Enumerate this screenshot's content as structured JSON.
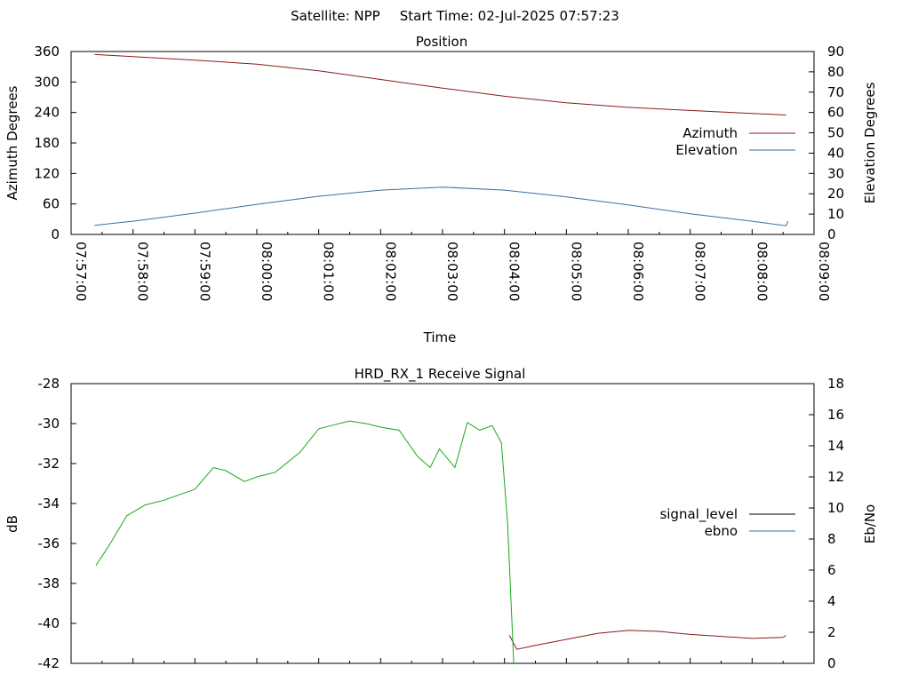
{
  "header": {
    "satellite": "Satellite: NPP",
    "start_time": "Start Time: 02-Jul-2025 07:57:23"
  },
  "colors": {
    "azimuth": "#8b1a1a",
    "elevation": "#3a6ea5",
    "signal_level_key": "#000000",
    "signal_level_trace": "#8b1a1a",
    "ebno_key": "#3a6ea5",
    "ebno_trace": "#1aa81a"
  },
  "chart_data": [
    {
      "type": "line",
      "title": "Position",
      "xlabel": "Time",
      "ylabel": "Azimuth Degrees",
      "y2label": "Elevation Degrees",
      "x_tick_labels": [
        "07:57:00",
        "07:58:00",
        "07:59:00",
        "08:00:00",
        "08:01:00",
        "08:02:00",
        "08:03:00",
        "08:04:00",
        "08:05:00",
        "08:06:00",
        "08:07:00",
        "08:08:00",
        "08:09:00"
      ],
      "y_ticks": [
        0,
        60,
        120,
        180,
        240,
        300,
        360
      ],
      "y2_ticks": [
        0,
        10,
        20,
        30,
        40,
        50,
        60,
        70,
        80,
        90
      ],
      "xlim_minutes": [
        0,
        12
      ],
      "ylim": [
        0,
        360
      ],
      "y2lim": [
        0,
        90
      ],
      "legend_position": "right",
      "series": [
        {
          "name": "Azimuth",
          "axis": "y",
          "x_minutes": [
            0.38,
            1,
            2,
            3,
            4,
            5,
            6,
            7,
            8,
            9,
            10,
            11,
            11.55
          ],
          "values": [
            354,
            350,
            343,
            335,
            322,
            305,
            288,
            272,
            259,
            250,
            244,
            238,
            235
          ]
        },
        {
          "name": "Elevation",
          "axis": "y2",
          "x_minutes": [
            0.38,
            1,
            2,
            3,
            4,
            5,
            6,
            7,
            8,
            9,
            10,
            11,
            11.55,
            11.58
          ],
          "values": [
            4.5,
            6.5,
            10.5,
            14.8,
            18.8,
            21.8,
            23.3,
            21.8,
            18.5,
            14.5,
            10.2,
            6.5,
            4.3,
            6.5
          ]
        }
      ]
    },
    {
      "type": "line",
      "title": "HRD_RX_1 Receive Signal",
      "xlabel": "",
      "ylabel": "dB",
      "y2label": "Eb/No",
      "y_ticks": [
        -42,
        -40,
        -38,
        -36,
        -34,
        -32,
        -30,
        -28
      ],
      "y2_ticks": [
        0,
        2,
        4,
        6,
        8,
        10,
        12,
        14,
        16,
        18
      ],
      "xlim_minutes": [
        0,
        12
      ],
      "ylim": [
        -42,
        -28
      ],
      "y2lim": [
        0,
        18
      ],
      "legend_position": "right",
      "series": [
        {
          "name": "signal_level",
          "axis": "y",
          "x_minutes": [
            7.08,
            7.2,
            7.5,
            8.0,
            8.5,
            9.0,
            9.5,
            10.0,
            10.5,
            11.0,
            11.5,
            11.55
          ],
          "values": [
            -40.6,
            -41.3,
            -41.1,
            -40.8,
            -40.5,
            -40.35,
            -40.4,
            -40.55,
            -40.65,
            -40.75,
            -40.7,
            -40.6
          ]
        },
        {
          "name": "ebno",
          "axis": "y2",
          "x_minutes": [
            0.4,
            0.6,
            0.9,
            1.2,
            1.5,
            2.0,
            2.3,
            2.5,
            2.8,
            3.0,
            3.3,
            3.7,
            4.0,
            4.2,
            4.5,
            4.8,
            5.0,
            5.3,
            5.6,
            5.8,
            5.95,
            6.2,
            6.4,
            6.6,
            6.8,
            6.95,
            7.05,
            7.15
          ],
          "values": [
            6.3,
            7.5,
            9.5,
            10.2,
            10.5,
            11.2,
            12.6,
            12.4,
            11.7,
            12.0,
            12.3,
            13.6,
            15.1,
            15.3,
            15.6,
            15.4,
            15.2,
            15.0,
            13.3,
            12.6,
            13.8,
            12.6,
            15.5,
            15.0,
            15.3,
            14.2,
            9.0,
            0.0
          ]
        }
      ]
    }
  ]
}
